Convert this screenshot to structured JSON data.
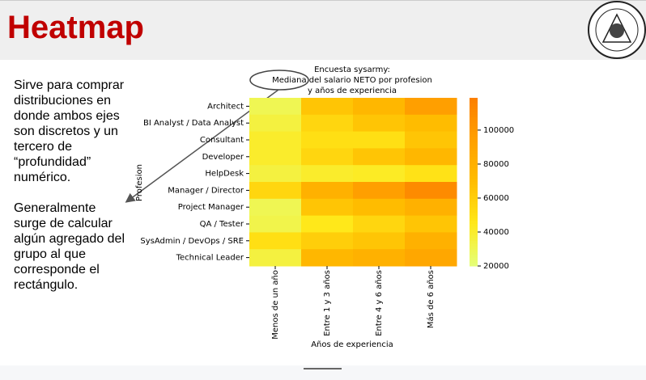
{
  "slide": {
    "title": "Heatmap",
    "body": [
      "Sirve para comprar distribuciones en donde ambos ejes son discretos y un tercero de “profundidad” numérico.",
      "Generalmente surge de calcular algún agregado del grupo al que corresponde el rectángulo."
    ]
  },
  "chart_data": {
    "type": "heatmap",
    "title": [
      "Encuesta sysarmy:",
      "Mediana del salario NETO por profesion",
      "y años de experiencia"
    ],
    "x_label": "Años de experiencia",
    "y_label": "Profesion",
    "x": [
      "Menos de un año",
      "Entre 1 y 3 años",
      "Entre 4 y 6 años",
      "Más de 6 años"
    ],
    "y": [
      "Architect",
      "BI Analyst / Data Analyst",
      "Consultant",
      "Developer",
      "HelpDesk",
      "Manager / Director",
      "Project Manager",
      "QA / Tester",
      "SysAdmin / DevOps / SRE",
      "Technical Leader"
    ],
    "values": [
      [
        30000,
        65000,
        75000,
        95000
      ],
      [
        35000,
        55000,
        65000,
        70000
      ],
      [
        40000,
        50000,
        50000,
        65000
      ],
      [
        40000,
        55000,
        65000,
        75000
      ],
      [
        35000,
        40000,
        42000,
        48000
      ],
      [
        55000,
        80000,
        95000,
        110000
      ],
      [
        30000,
        65000,
        70000,
        80000
      ],
      [
        32000,
        45000,
        55000,
        65000
      ],
      [
        50000,
        60000,
        65000,
        80000
      ],
      [
        35000,
        75000,
        80000,
        88000
      ]
    ],
    "zlim": [
      20000,
      119000
    ],
    "zticks": [
      20000,
      40000,
      60000,
      80000,
      100000
    ],
    "colormap": [
      "#e4ff7a",
      "#ffe81a",
      "#ffbd00",
      "#ffa000",
      "#fc7f00"
    ]
  }
}
